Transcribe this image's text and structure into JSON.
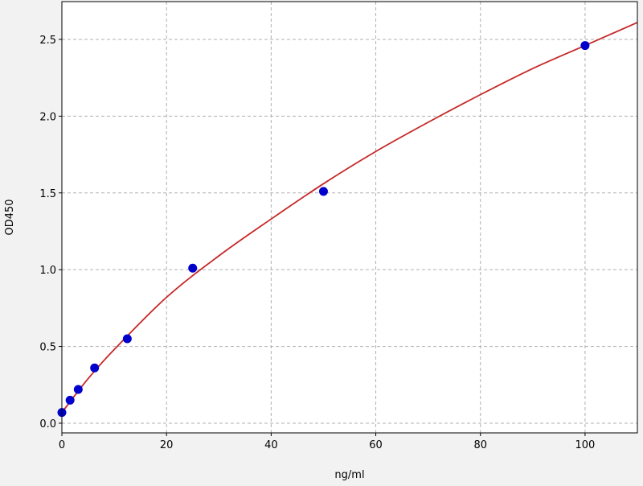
{
  "chart_data": {
    "type": "scatter",
    "title": "",
    "xlabel": "ng/ml",
    "ylabel": "OD450",
    "xlim": [
      0,
      110
    ],
    "ylim": [
      -0.063,
      2.746
    ],
    "xticks": [
      0,
      20,
      40,
      60,
      80,
      100
    ],
    "yticks": [
      0.0,
      0.5,
      1.0,
      1.5,
      2.0,
      2.5
    ],
    "ytick_labels": [
      "0.0",
      "0.5",
      "1.0",
      "1.5",
      "2.0",
      "2.5"
    ],
    "grid": true,
    "series": [
      {
        "kind": "points",
        "color": "#0000cc",
        "x": [
          0,
          1.5625,
          3.125,
          6.25,
          12.5,
          25,
          50,
          100
        ],
        "y": [
          0.07,
          0.15,
          0.22,
          0.36,
          0.55,
          1.01,
          1.51,
          2.46
        ]
      },
      {
        "kind": "fit-line",
        "color": "#c62828",
        "x": [
          0,
          5,
          10,
          20,
          30,
          40,
          50,
          60,
          70,
          80,
          90,
          100,
          110
        ],
        "y": [
          0.07,
          0.29,
          0.48,
          0.82,
          1.09,
          1.33,
          1.56,
          1.77,
          1.96,
          2.14,
          2.31,
          2.46,
          2.61
        ]
      }
    ]
  }
}
